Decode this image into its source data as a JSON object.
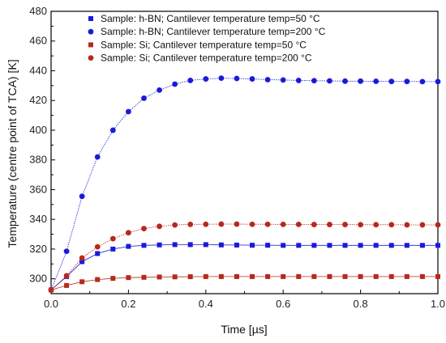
{
  "chart_data": {
    "type": "scatter",
    "title": "",
    "xlabel": "Time [µs]",
    "ylabel": "Temperature (centre point of TCA) [K]",
    "xlim": [
      0.0,
      1.0
    ],
    "ylim": [
      290,
      480
    ],
    "xticks": [
      "0.0",
      "0.2",
      "0.4",
      "0.6",
      "0.8",
      "1.0"
    ],
    "yticks": [
      "300",
      "320",
      "340",
      "360",
      "380",
      "400",
      "420",
      "440",
      "460",
      "480"
    ],
    "xtick_values": [
      0.0,
      0.2,
      0.4,
      0.6,
      0.8,
      1.0
    ],
    "ytick_values": [
      300,
      320,
      340,
      360,
      380,
      400,
      420,
      440,
      460,
      480
    ],
    "grid": false,
    "legend_position": "top-left",
    "x": [
      0.0,
      0.04,
      0.08,
      0.12,
      0.16,
      0.2,
      0.24,
      0.28,
      0.32,
      0.36,
      0.4,
      0.44,
      0.48,
      0.52,
      0.56,
      0.6,
      0.64,
      0.68,
      0.72,
      0.76,
      0.8,
      0.84,
      0.88,
      0.92,
      0.96,
      1.0
    ],
    "series": [
      {
        "name": "Sample: h-BN; Cantilever temperature temp=50 °C",
        "marker": "square",
        "color": "#1a1adb",
        "values": [
          292.5,
          301.5,
          311.5,
          317.0,
          320.0,
          321.8,
          322.5,
          322.8,
          323.0,
          323.0,
          323.0,
          322.8,
          322.7,
          322.6,
          322.6,
          322.5,
          322.5,
          322.5,
          322.5,
          322.5,
          322.5,
          322.5,
          322.5,
          322.5,
          322.5,
          322.5
        ]
      },
      {
        "name": "Sample: h-BN; Cantilever temperature temp=200 °C",
        "marker": "circle",
        "color": "#1a1adb",
        "values": [
          292.5,
          318.5,
          355.5,
          382.0,
          400.0,
          412.5,
          421.5,
          427.0,
          431.0,
          433.5,
          434.5,
          435.0,
          434.8,
          434.5,
          434.0,
          433.8,
          433.5,
          433.3,
          433.2,
          433.0,
          433.0,
          432.9,
          432.8,
          432.8,
          432.7,
          432.7
        ]
      },
      {
        "name": "Sample: Si; Cantilever temperature temp=50 °C",
        "marker": "square",
        "color": "#b8281c",
        "values": [
          292.5,
          295.5,
          298.0,
          299.5,
          300.3,
          300.8,
          301.0,
          301.2,
          301.3,
          301.4,
          301.5,
          301.5,
          301.5,
          301.5,
          301.5,
          301.5,
          301.5,
          301.5,
          301.5,
          301.5,
          301.5,
          301.5,
          301.5,
          301.5,
          301.5,
          301.5
        ]
      },
      {
        "name": "Sample: Si; Cantilever temperature temp=200 °C",
        "marker": "circle",
        "color": "#b8281c",
        "values": [
          292.5,
          302.0,
          314.0,
          321.5,
          327.0,
          331.0,
          333.8,
          335.3,
          336.2,
          336.6,
          336.7,
          336.8,
          336.8,
          336.7,
          336.7,
          336.6,
          336.6,
          336.5,
          336.5,
          336.5,
          336.4,
          336.4,
          336.4,
          336.3,
          336.3,
          336.3
        ]
      }
    ]
  }
}
